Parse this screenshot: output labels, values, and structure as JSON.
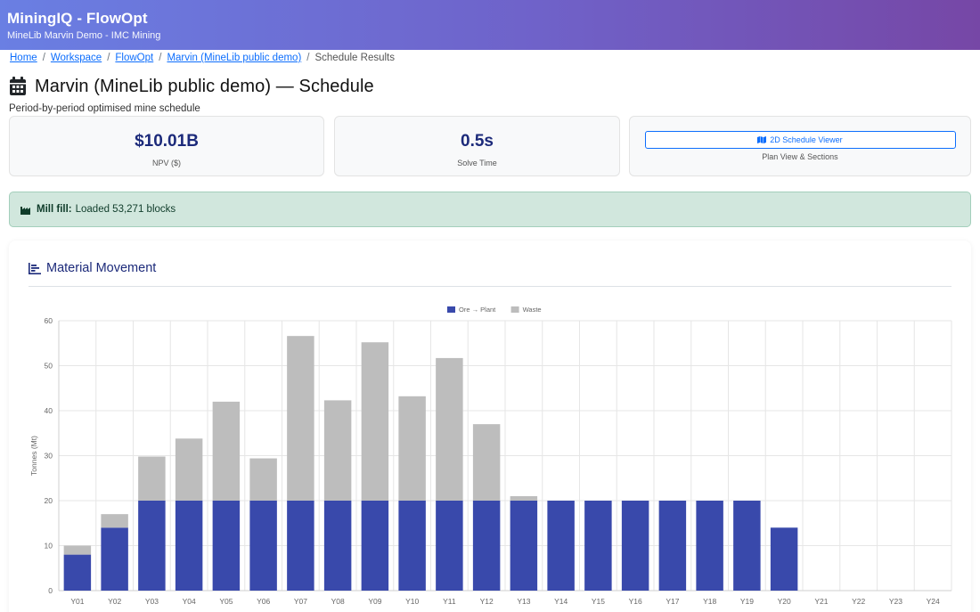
{
  "header": {
    "app_title": "MiningIQ - FlowOpt",
    "subtitle": "MineLib Marvin Demo - IMC Mining"
  },
  "breadcrumb": {
    "items": [
      "Home",
      "Workspace",
      "FlowOpt",
      "Marvin (MineLib public demo)"
    ],
    "current": "Schedule Results",
    "separator": "/"
  },
  "page": {
    "title": "Marvin (MineLib public demo) — Schedule",
    "icon": "calendar-icon",
    "subtitle": "Period-by-period optimised mine schedule"
  },
  "cards": {
    "npv": {
      "value": "$10.01B",
      "label": "NPV ($)"
    },
    "solve": {
      "value": "0.5s",
      "label": "Solve Time"
    },
    "viewer": {
      "button_label": "2D Schedule Viewer",
      "button_icon": "map-icon",
      "label": "Plan View & Sections"
    }
  },
  "alert": {
    "icon": "industry-icon",
    "bold": "Mill fill:",
    "text": "Loaded 53,271 blocks"
  },
  "panel": {
    "title": "Material Movement",
    "icon": "bar-chart-icon"
  },
  "colors": {
    "ore": "#3949ab",
    "waste": "#bdbdbd",
    "accent": "#0d6efd",
    "alert_bg": "#d1e7dd"
  },
  "chart_data": {
    "type": "bar",
    "stacked": true,
    "categories": [
      "Y01",
      "Y02",
      "Y03",
      "Y04",
      "Y05",
      "Y06",
      "Y07",
      "Y08",
      "Y09",
      "Y10",
      "Y11",
      "Y12",
      "Y13",
      "Y14",
      "Y15",
      "Y16",
      "Y17",
      "Y18",
      "Y19",
      "Y20",
      "Y21",
      "Y22",
      "Y23",
      "Y24"
    ],
    "series": [
      {
        "name": "Ore → Plant",
        "color": "#3949ab",
        "values": [
          8,
          14,
          20,
          20,
          20,
          20,
          20,
          20,
          20,
          20,
          20,
          20,
          20,
          20,
          20,
          20,
          20,
          20,
          20,
          14,
          0,
          0,
          0,
          0
        ]
      },
      {
        "name": "Waste",
        "color": "#bdbdbd",
        "values": [
          2,
          3,
          9.8,
          13.8,
          22,
          9.4,
          36.6,
          22.3,
          35.2,
          23.2,
          31.7,
          17,
          1,
          0,
          0,
          0,
          0,
          0,
          0,
          0,
          0,
          0,
          0,
          0
        ]
      }
    ],
    "ylabel": "Tonnes (Mt)",
    "xlabel": "",
    "ylim": [
      0,
      60
    ],
    "yticks": [
      0,
      10,
      20,
      30,
      40,
      50,
      60
    ],
    "grid": true,
    "legend": "top-center"
  }
}
